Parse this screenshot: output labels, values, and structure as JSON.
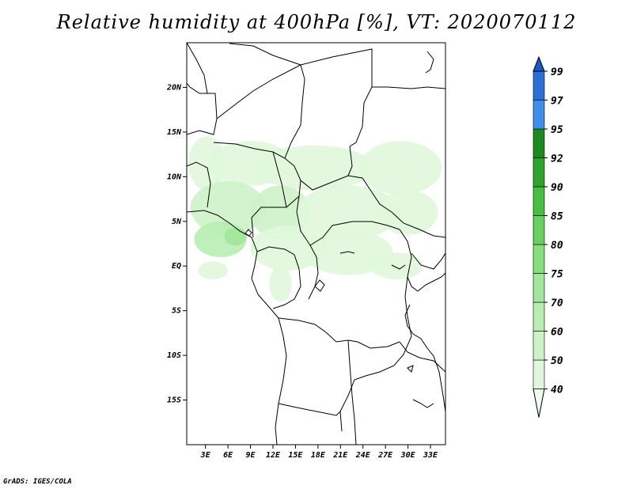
{
  "title": "Relative humidity at 400hPa [%], VT: 2020070112",
  "credit": "GrADS: IGES/COLA",
  "map": {
    "lat_labels": [
      "20N",
      "15N",
      "10N",
      "5N",
      "EQ",
      "5S",
      "10S",
      "15S"
    ],
    "lat_values": [
      20,
      15,
      10,
      5,
      0,
      -5,
      -10,
      -15
    ],
    "lon_labels": [
      "3E",
      "6E",
      "9E",
      "12E",
      "15E",
      "18E",
      "21E",
      "24E",
      "27E",
      "30E",
      "33E"
    ],
    "lon_values": [
      3,
      6,
      9,
      12,
      15,
      18,
      21,
      24,
      27,
      30,
      33
    ],
    "lon_range": [
      0.5,
      35
    ],
    "lat_range": [
      -20,
      25
    ]
  },
  "colorbar": {
    "levels": [
      "40",
      "50",
      "60",
      "70",
      "75",
      "80",
      "85",
      "90",
      "92",
      "95",
      "97",
      "99"
    ],
    "colors": [
      "#f0fbee",
      "#e0f7dc",
      "#cdf2c8",
      "#b8edb2",
      "#a2e69b",
      "#86de7f",
      "#67d25f",
      "#46bf40",
      "#2ea42a",
      "#1c8a1c",
      "#3d8fe8",
      "#2a6fd6",
      "#1d57c4"
    ]
  },
  "humidity_regions": [
    {
      "lon": 3.2,
      "lat": 11.5,
      "rx": 2.5,
      "ry": 3.0,
      "level": 1
    },
    {
      "lon": 9.0,
      "lat": 11.5,
      "rx": 5.5,
      "ry": 2.5,
      "level": 1
    },
    {
      "lon": 17.5,
      "lat": 11.0,
      "rx": 8.0,
      "ry": 2.5,
      "level": 1
    },
    {
      "lon": 29.0,
      "lat": 11.0,
      "rx": 5.5,
      "ry": 3.0,
      "level": 1
    },
    {
      "lon": 6.0,
      "lat": 6.5,
      "rx": 5.0,
      "ry": 3.0,
      "level": 2
    },
    {
      "lon": 13.0,
      "lat": 6.0,
      "rx": 4.0,
      "ry": 3.0,
      "level": 2
    },
    {
      "lon": 22.0,
      "lat": 6.0,
      "rx": 7.0,
      "ry": 3.0,
      "level": 1
    },
    {
      "lon": 30.0,
      "lat": 6.0,
      "rx": 4.0,
      "ry": 2.5,
      "level": 1
    },
    {
      "lon": 5.0,
      "lat": 3.0,
      "rx": 3.5,
      "ry": 2.0,
      "level": 3
    },
    {
      "lon": 7.0,
      "lat": 3.3,
      "rx": 1.5,
      "ry": 1.0,
      "level": 4
    },
    {
      "lon": 14.0,
      "lat": 2.0,
      "rx": 5.0,
      "ry": 2.5,
      "level": 1
    },
    {
      "lon": 22.0,
      "lat": 1.5,
      "rx": 6.0,
      "ry": 2.5,
      "level": 1
    },
    {
      "lon": 28.5,
      "lat": 0.0,
      "rx": 3.5,
      "ry": 1.5,
      "level": 1
    },
    {
      "lon": 13.0,
      "lat": -2.0,
      "rx": 1.5,
      "ry": 2.0,
      "level": 1
    },
    {
      "lon": 4.0,
      "lat": -0.5,
      "rx": 2.0,
      "ry": 1.0,
      "level": 1
    }
  ]
}
